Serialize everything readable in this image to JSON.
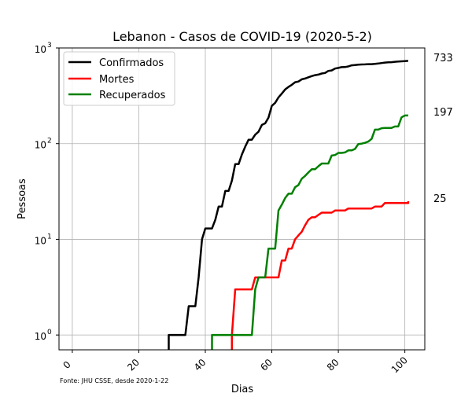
{
  "chart_data": {
    "type": "line",
    "title": "Lebanon - Casos de COVID-19 (2020-5-2)",
    "xlabel": "Dias",
    "ylabel": "Pessoas",
    "yscale": "log",
    "xlim": [
      -4,
      106
    ],
    "ylim": [
      0.7,
      1000
    ],
    "grid": true,
    "legend_position": "top-left",
    "x_ticks": [
      0,
      20,
      40,
      60,
      80,
      100
    ],
    "x_tick_labels": [
      "0",
      "20",
      "40",
      "60",
      "80",
      "100"
    ],
    "y_ticks": [
      1,
      10,
      100,
      1000
    ],
    "y_tick_bases": [
      "10",
      "10",
      "10",
      "10"
    ],
    "y_tick_exps": [
      "0",
      "1",
      "2",
      "3"
    ],
    "source_note": "Fonte: JHU CSSE, desde 2020-1-22",
    "end_labels": [
      "733",
      "25",
      "197"
    ],
    "series": [
      {
        "name": "Confirmados",
        "color": "#000000",
        "points": [
          [
            29,
            0.7
          ],
          [
            29,
            1
          ],
          [
            30,
            1
          ],
          [
            34,
            1
          ],
          [
            35,
            2
          ],
          [
            37,
            2
          ],
          [
            38,
            4
          ],
          [
            39,
            10
          ],
          [
            40,
            13
          ],
          [
            42,
            13
          ],
          [
            43,
            16
          ],
          [
            44,
            22
          ],
          [
            45,
            22
          ],
          [
            46,
            32
          ],
          [
            47,
            32
          ],
          [
            48,
            41
          ],
          [
            49,
            61
          ],
          [
            50,
            61
          ],
          [
            51,
            77
          ],
          [
            52,
            93
          ],
          [
            53,
            110
          ],
          [
            54,
            110
          ],
          [
            55,
            124
          ],
          [
            56,
            133
          ],
          [
            57,
            157
          ],
          [
            58,
            163
          ],
          [
            59,
            187
          ],
          [
            60,
            248
          ],
          [
            61,
            267
          ],
          [
            62,
            304
          ],
          [
            63,
            333
          ],
          [
            64,
            368
          ],
          [
            65,
            391
          ],
          [
            66,
            412
          ],
          [
            67,
            438
          ],
          [
            68,
            446
          ],
          [
            69,
            470
          ],
          [
            70,
            479
          ],
          [
            71,
            494
          ],
          [
            72,
            508
          ],
          [
            73,
            520
          ],
          [
            74,
            527
          ],
          [
            75,
            541
          ],
          [
            76,
            548
          ],
          [
            77,
            576
          ],
          [
            78,
            582
          ],
          [
            79,
            609
          ],
          [
            80,
            619
          ],
          [
            81,
            630
          ],
          [
            82,
            632
          ],
          [
            83,
            641
          ],
          [
            84,
            658
          ],
          [
            85,
            663
          ],
          [
            86,
            668
          ],
          [
            87,
            672
          ],
          [
            88,
            673
          ],
          [
            89,
            677
          ],
          [
            90,
            677
          ],
          [
            91,
            682
          ],
          [
            92,
            688
          ],
          [
            93,
            696
          ],
          [
            94,
            704
          ],
          [
            95,
            707
          ],
          [
            96,
            710
          ],
          [
            97,
            717
          ],
          [
            98,
            721
          ],
          [
            99,
            725
          ],
          [
            100,
            729
          ],
          [
            101,
            733
          ]
        ]
      },
      {
        "name": "Mortes",
        "color": "#ff0000",
        "points": [
          [
            48,
            0.7
          ],
          [
            48,
            1
          ],
          [
            49,
            3
          ],
          [
            54,
            3
          ],
          [
            55,
            4
          ],
          [
            59,
            4
          ],
          [
            60,
            4
          ],
          [
            62,
            4
          ],
          [
            63,
            6
          ],
          [
            64,
            6
          ],
          [
            65,
            8
          ],
          [
            66,
            8
          ],
          [
            67,
            10
          ],
          [
            68,
            11
          ],
          [
            69,
            12
          ],
          [
            70,
            14
          ],
          [
            71,
            16
          ],
          [
            72,
            17
          ],
          [
            73,
            17
          ],
          [
            74,
            18
          ],
          [
            75,
            19
          ],
          [
            78,
            19
          ],
          [
            79,
            20
          ],
          [
            82,
            20
          ],
          [
            83,
            21
          ],
          [
            90,
            21
          ],
          [
            91,
            22
          ],
          [
            93,
            22
          ],
          [
            94,
            24
          ],
          [
            101,
            24
          ],
          [
            101,
            25
          ]
        ]
      },
      {
        "name": "Recuperados",
        "color": "#008000",
        "points": [
          [
            42,
            0.7
          ],
          [
            42,
            1
          ],
          [
            54,
            1
          ],
          [
            55,
            3
          ],
          [
            56,
            4
          ],
          [
            58,
            4
          ],
          [
            59,
            8
          ],
          [
            61,
            8
          ],
          [
            62,
            20
          ],
          [
            63,
            23
          ],
          [
            64,
            27
          ],
          [
            65,
            30
          ],
          [
            66,
            30
          ],
          [
            67,
            35
          ],
          [
            68,
            37
          ],
          [
            69,
            43
          ],
          [
            70,
            46
          ],
          [
            71,
            50
          ],
          [
            72,
            54
          ],
          [
            73,
            54
          ],
          [
            74,
            58
          ],
          [
            75,
            62
          ],
          [
            77,
            62
          ],
          [
            78,
            75
          ],
          [
            79,
            76
          ],
          [
            80,
            80
          ],
          [
            81,
            80
          ],
          [
            82,
            81
          ],
          [
            83,
            85
          ],
          [
            84,
            85
          ],
          [
            85,
            88
          ],
          [
            86,
            99
          ],
          [
            87,
            100
          ],
          [
            88,
            102
          ],
          [
            89,
            105
          ],
          [
            90,
            112
          ],
          [
            91,
            140
          ],
          [
            92,
            140
          ],
          [
            93,
            145
          ],
          [
            94,
            146
          ],
          [
            95,
            146
          ],
          [
            96,
            146
          ],
          [
            97,
            151
          ],
          [
            98,
            151
          ],
          [
            99,
            188
          ],
          [
            100,
            197
          ],
          [
            101,
            197
          ]
        ]
      }
    ]
  }
}
